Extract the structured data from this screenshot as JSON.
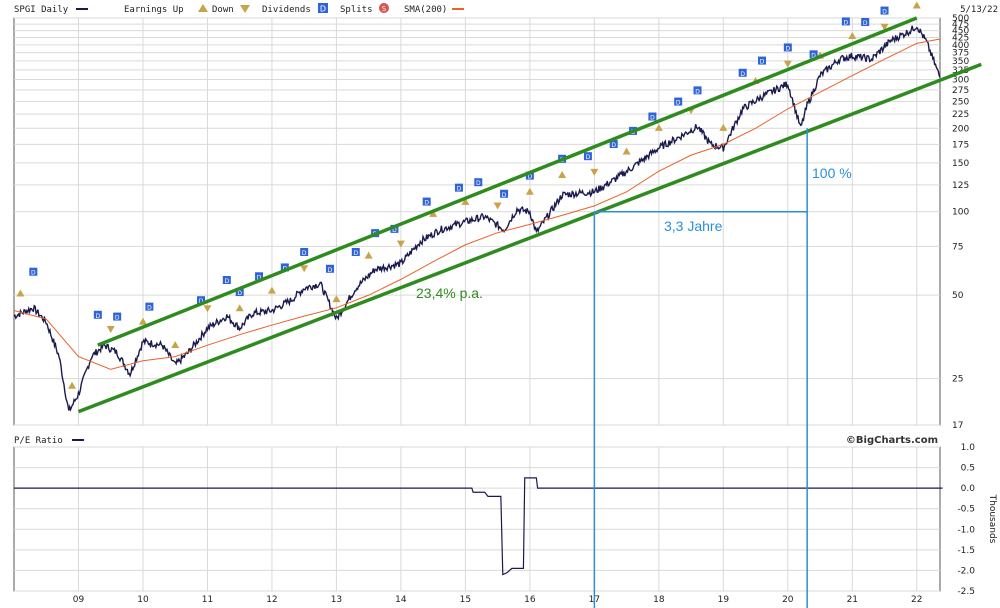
{
  "header": {
    "symbol_label": "SPGI Daily",
    "earnings_label": "Earnings Up",
    "earnings_down_label": "Down",
    "dividends_label": "Dividends",
    "dividends_icon": "D",
    "splits_label": "Splits",
    "splits_icon": "S",
    "sma_label": "SMA(200)",
    "date": "5/13/22"
  },
  "lower_panel": {
    "label": "P/E Ratio",
    "units_label": "Thousands",
    "watermark": "©BigCharts.com"
  },
  "colors": {
    "price": "#1a1a4e",
    "sma": "#e8622a",
    "channel": "#2e8b1e",
    "annotation": "#2a8fd8",
    "grid": "#d9d9d9",
    "dividend": "#2f63d6",
    "earnings": "#c9a24a"
  },
  "annotations": {
    "rate": "23,4% p.a.",
    "duration": "3,3 Jahre",
    "gain": "100 %"
  },
  "chart_data": [
    {
      "type": "line",
      "title": "SPGI Daily",
      "scale": "log",
      "ylim": [
        17,
        500
      ],
      "yticks": [
        17,
        25,
        50,
        75,
        100,
        125,
        150,
        175,
        200,
        225,
        250,
        275,
        300,
        325,
        350,
        375,
        400,
        425,
        450,
        475,
        500
      ],
      "xticks": [
        "09",
        "10",
        "11",
        "12",
        "13",
        "14",
        "15",
        "16",
        "17",
        "18",
        "19",
        "20",
        "21",
        "22"
      ],
      "grid": true,
      "legend_position": "top-left",
      "series": [
        {
          "name": "SPGI Daily",
          "x": [
            2008.0,
            2008.3,
            2008.5,
            2008.7,
            2008.85,
            2009.0,
            2009.2,
            2009.4,
            2009.6,
            2009.8,
            2010.0,
            2010.3,
            2010.5,
            2010.7,
            2011.0,
            2011.3,
            2011.5,
            2011.7,
            2012.0,
            2012.3,
            2012.5,
            2012.75,
            2013.0,
            2013.3,
            2013.6,
            2014.0,
            2014.3,
            2014.6,
            2015.0,
            2015.3,
            2015.6,
            2015.8,
            2016.0,
            2016.1,
            2016.5,
            2016.8,
            2017.0,
            2017.3,
            2017.6,
            2018.0,
            2018.3,
            2018.6,
            2018.8,
            2019.0,
            2019.3,
            2019.6,
            2020.0,
            2020.2,
            2020.3,
            2020.5,
            2020.8,
            2021.0,
            2021.3,
            2021.6,
            2021.9,
            2022.0,
            2022.15,
            2022.36
          ],
          "values": [
            42,
            45,
            40,
            30,
            19,
            22,
            30,
            33,
            31,
            26,
            34,
            33,
            28,
            31,
            38,
            42,
            38,
            43,
            44,
            48,
            53,
            55,
            41,
            53,
            62,
            65,
            78,
            86,
            92,
            96,
            86,
            102,
            100,
            84,
            115,
            117,
            118,
            130,
            145,
            170,
            185,
            203,
            175,
            170,
            235,
            260,
            290,
            200,
            242,
            310,
            355,
            365,
            355,
            415,
            450,
            470,
            410,
            305
          ]
        },
        {
          "name": "SMA(200)",
          "x": [
            2008.0,
            2008.5,
            2009.0,
            2009.5,
            2010.0,
            2010.5,
            2011.0,
            2011.5,
            2012.0,
            2012.5,
            2013.0,
            2013.5,
            2014.0,
            2014.5,
            2015.0,
            2015.5,
            2016.0,
            2016.5,
            2017.0,
            2017.5,
            2018.0,
            2018.5,
            2019.0,
            2019.5,
            2020.0,
            2020.5,
            2021.0,
            2021.5,
            2022.0,
            2022.36
          ],
          "values": [
            44,
            41,
            30,
            27,
            29,
            30,
            33,
            36,
            39,
            42,
            45,
            50,
            57,
            66,
            76,
            84,
            90,
            97,
            105,
            118,
            140,
            160,
            175,
            200,
            235,
            270,
            310,
            355,
            405,
            420
          ]
        },
        {
          "name": "channel-upper",
          "x": [
            2009.3,
            2022.0
          ],
          "values": [
            33,
            500
          ]
        },
        {
          "name": "channel-lower",
          "x": [
            2009.0,
            2023.0
          ],
          "values": [
            19,
            340
          ]
        }
      ],
      "markers": {
        "dividends": [
          2008.3,
          2009.3,
          2009.6,
          2010.1,
          2010.9,
          2011.3,
          2011.5,
          2011.8,
          2012.2,
          2012.5,
          2012.9,
          2013.3,
          2013.6,
          2013.9,
          2014.4,
          2014.9,
          2015.2,
          2015.6,
          2016.0,
          2016.5,
          2016.9,
          2017.3,
          2017.6,
          2017.9,
          2018.3,
          2018.6,
          2019.3,
          2019.6,
          2020.0,
          2020.4,
          2020.9,
          2021.2,
          2021.5,
          2022.0
        ],
        "earnings": [
          2008.1,
          2008.9,
          2009.5,
          2010.0,
          2010.5,
          2011.0,
          2011.5,
          2012.0,
          2012.5,
          2013.0,
          2013.5,
          2014.0,
          2014.5,
          2015.0,
          2015.5,
          2016.0,
          2016.5,
          2017.0,
          2017.5,
          2018.0,
          2018.5,
          2019.0,
          2019.5,
          2020.0,
          2020.5,
          2021.0,
          2021.5,
          2022.0
        ]
      }
    },
    {
      "type": "line",
      "title": "P/E Ratio",
      "ylabel": "Thousands",
      "ylim": [
        -2.5,
        1.0
      ],
      "yticks": [
        1.0,
        0.5,
        0.0,
        -0.5,
        -1.0,
        -1.5,
        -2.0,
        -2.5
      ],
      "series": [
        {
          "name": "P/E Ratio",
          "x": [
            2008.0,
            2015.1,
            2015.12,
            2015.3,
            2015.35,
            2015.55,
            2015.58,
            2015.65,
            2015.72,
            2015.9,
            2015.92,
            2016.1,
            2016.12,
            2022.4
          ],
          "values": [
            0.0,
            0.0,
            -0.1,
            -0.1,
            -0.2,
            -0.2,
            -2.1,
            -2.05,
            -1.95,
            -1.95,
            0.25,
            0.25,
            0.0,
            0.0
          ]
        }
      ]
    }
  ]
}
